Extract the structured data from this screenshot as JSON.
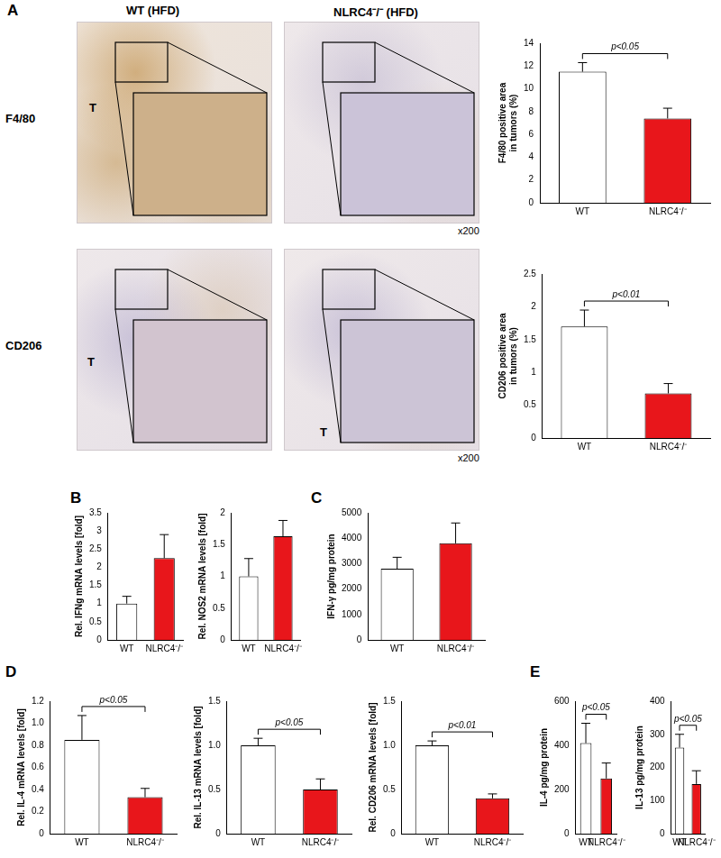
{
  "figure": {
    "panel_labels": [
      "A",
      "B",
      "C",
      "D",
      "E"
    ],
    "image_columns": [
      "WT (HFD)",
      "NLRC4⁻/⁻ (HFD)"
    ],
    "image_rows": [
      "F4/80",
      "CD206"
    ],
    "image_region_label": "T",
    "magnification": "x200"
  },
  "chart_data": [
    {
      "type": "bar",
      "categories": [
        "WT",
        "NLRC4⁻/⁻"
      ],
      "values": [
        11.5,
        7.4
      ],
      "errors": [
        0.8,
        0.9
      ],
      "colors": [
        "#ffffff",
        "#e8161b"
      ],
      "ylabel": [
        "F4/80 positive area",
        "in tumors (%)"
      ],
      "ylim": [
        0,
        14
      ],
      "yticks": [
        0,
        2,
        4,
        6,
        8,
        10,
        12,
        14
      ],
      "annotation": "p<0.05",
      "grid": false
    },
    {
      "type": "bar",
      "categories": [
        "WT",
        "NLRC4⁻/⁻"
      ],
      "values": [
        1.7,
        0.68
      ],
      "errors": [
        0.25,
        0.15
      ],
      "colors": [
        "#ffffff",
        "#e8161b"
      ],
      "ylabel": [
        "CD206 positive area",
        "in tumors (%)"
      ],
      "ylim": [
        0,
        2.5
      ],
      "yticks": [
        0,
        0.5,
        1,
        1.5,
        2,
        2.5
      ],
      "annotation": "p<0.01",
      "grid": false
    },
    {
      "type": "bar",
      "categories": [
        "WT",
        "NLRC4⁻/⁻"
      ],
      "values": [
        1.0,
        2.25
      ],
      "errors": [
        0.2,
        0.65
      ],
      "colors": [
        "#ffffff",
        "#e8161b"
      ],
      "ylabel": "Rel. IFNg mRNA levels [fold]",
      "ylim": [
        0,
        3.5
      ],
      "yticks": [
        0,
        0.5,
        1,
        1.5,
        2,
        2.5,
        3,
        3.5
      ],
      "grid": false
    },
    {
      "type": "bar",
      "categories": [
        "WT",
        "NLRC4⁻/⁻"
      ],
      "values": [
        1.0,
        1.63
      ],
      "errors": [
        0.28,
        0.25
      ],
      "colors": [
        "#ffffff",
        "#e8161b"
      ],
      "ylabel": "Rel. NOS2 mRNA levels [fold]",
      "ylim": [
        0,
        2
      ],
      "yticks": [
        0,
        0.5,
        1,
        1.5,
        2
      ],
      "grid": false
    },
    {
      "type": "bar",
      "categories": [
        "WT",
        "NLRC4⁻/⁻"
      ],
      "values": [
        2800,
        3800
      ],
      "errors": [
        450,
        800
      ],
      "colors": [
        "#ffffff",
        "#e8161b"
      ],
      "ylabel": "IFN-γ pg/mg protein",
      "ylim": [
        0,
        5000
      ],
      "yticks": [
        0,
        1000,
        2000,
        3000,
        4000,
        5000
      ],
      "grid": false
    },
    {
      "type": "bar",
      "categories": [
        "WT",
        "NLRC4⁻/⁻"
      ],
      "values": [
        0.85,
        0.33
      ],
      "errors": [
        0.22,
        0.08
      ],
      "colors": [
        "#ffffff",
        "#e8161b"
      ],
      "ylabel": "Rel. IL-4 mRNA levels [fold]",
      "ylim": [
        0,
        1.2
      ],
      "yticks": [
        0,
        0.2,
        0.4,
        0.6,
        0.8,
        {
          "value": 1,
          "label": "1.0"
        },
        1.2
      ],
      "annotation": "p<0.05",
      "grid": false
    },
    {
      "type": "bar",
      "categories": [
        "WT",
        "NLRC4⁻/⁻"
      ],
      "values": [
        1.0,
        0.5
      ],
      "errors": [
        0.08,
        0.12
      ],
      "colors": [
        "#ffffff",
        "#e8161b"
      ],
      "ylabel": "Rel. IL-13 mRNA levels [fold]",
      "ylim": [
        0,
        1.5
      ],
      "yticks": [
        0,
        0.5,
        {
          "value": 1,
          "label": "1.0"
        },
        1.5
      ],
      "annotation": "p<0.05",
      "grid": false
    },
    {
      "type": "bar",
      "categories": [
        "WT",
        "NLRC4⁻/⁻"
      ],
      "values": [
        1.0,
        0.4
      ],
      "errors": [
        0.05,
        0.05
      ],
      "colors": [
        "#ffffff",
        "#e8161b"
      ],
      "ylabel": "Rel. CD206 mRNA levels [fold]",
      "ylim": [
        0,
        1.5
      ],
      "yticks": [
        0,
        0.5,
        {
          "value": 1,
          "label": "1.0"
        },
        1.5
      ],
      "annotation": "p<0.01",
      "grid": false
    },
    {
      "type": "bar",
      "categories": [
        "WT",
        "NLRC4⁻/⁻"
      ],
      "values": [
        410,
        250
      ],
      "errors": [
        90,
        70
      ],
      "colors": [
        "#ffffff",
        "#e8161b"
      ],
      "ylabel": "IL-4 pg/mg protein",
      "ylim": [
        0,
        600
      ],
      "yticks": [
        0,
        200,
        400,
        600
      ],
      "annotation": "p<0.05",
      "grid": false
    },
    {
      "type": "bar",
      "categories": [
        "WT",
        "NLRC4⁻/⁻"
      ],
      "values": [
        260,
        150
      ],
      "errors": [
        40,
        40
      ],
      "colors": [
        "#ffffff",
        "#e8161b"
      ],
      "ylabel": "IL-13 pg/mg protein",
      "ylim": [
        0,
        400
      ],
      "yticks": [
        0,
        100,
        200,
        300,
        400
      ],
      "annotation": "p<0.05",
      "grid": false
    }
  ]
}
